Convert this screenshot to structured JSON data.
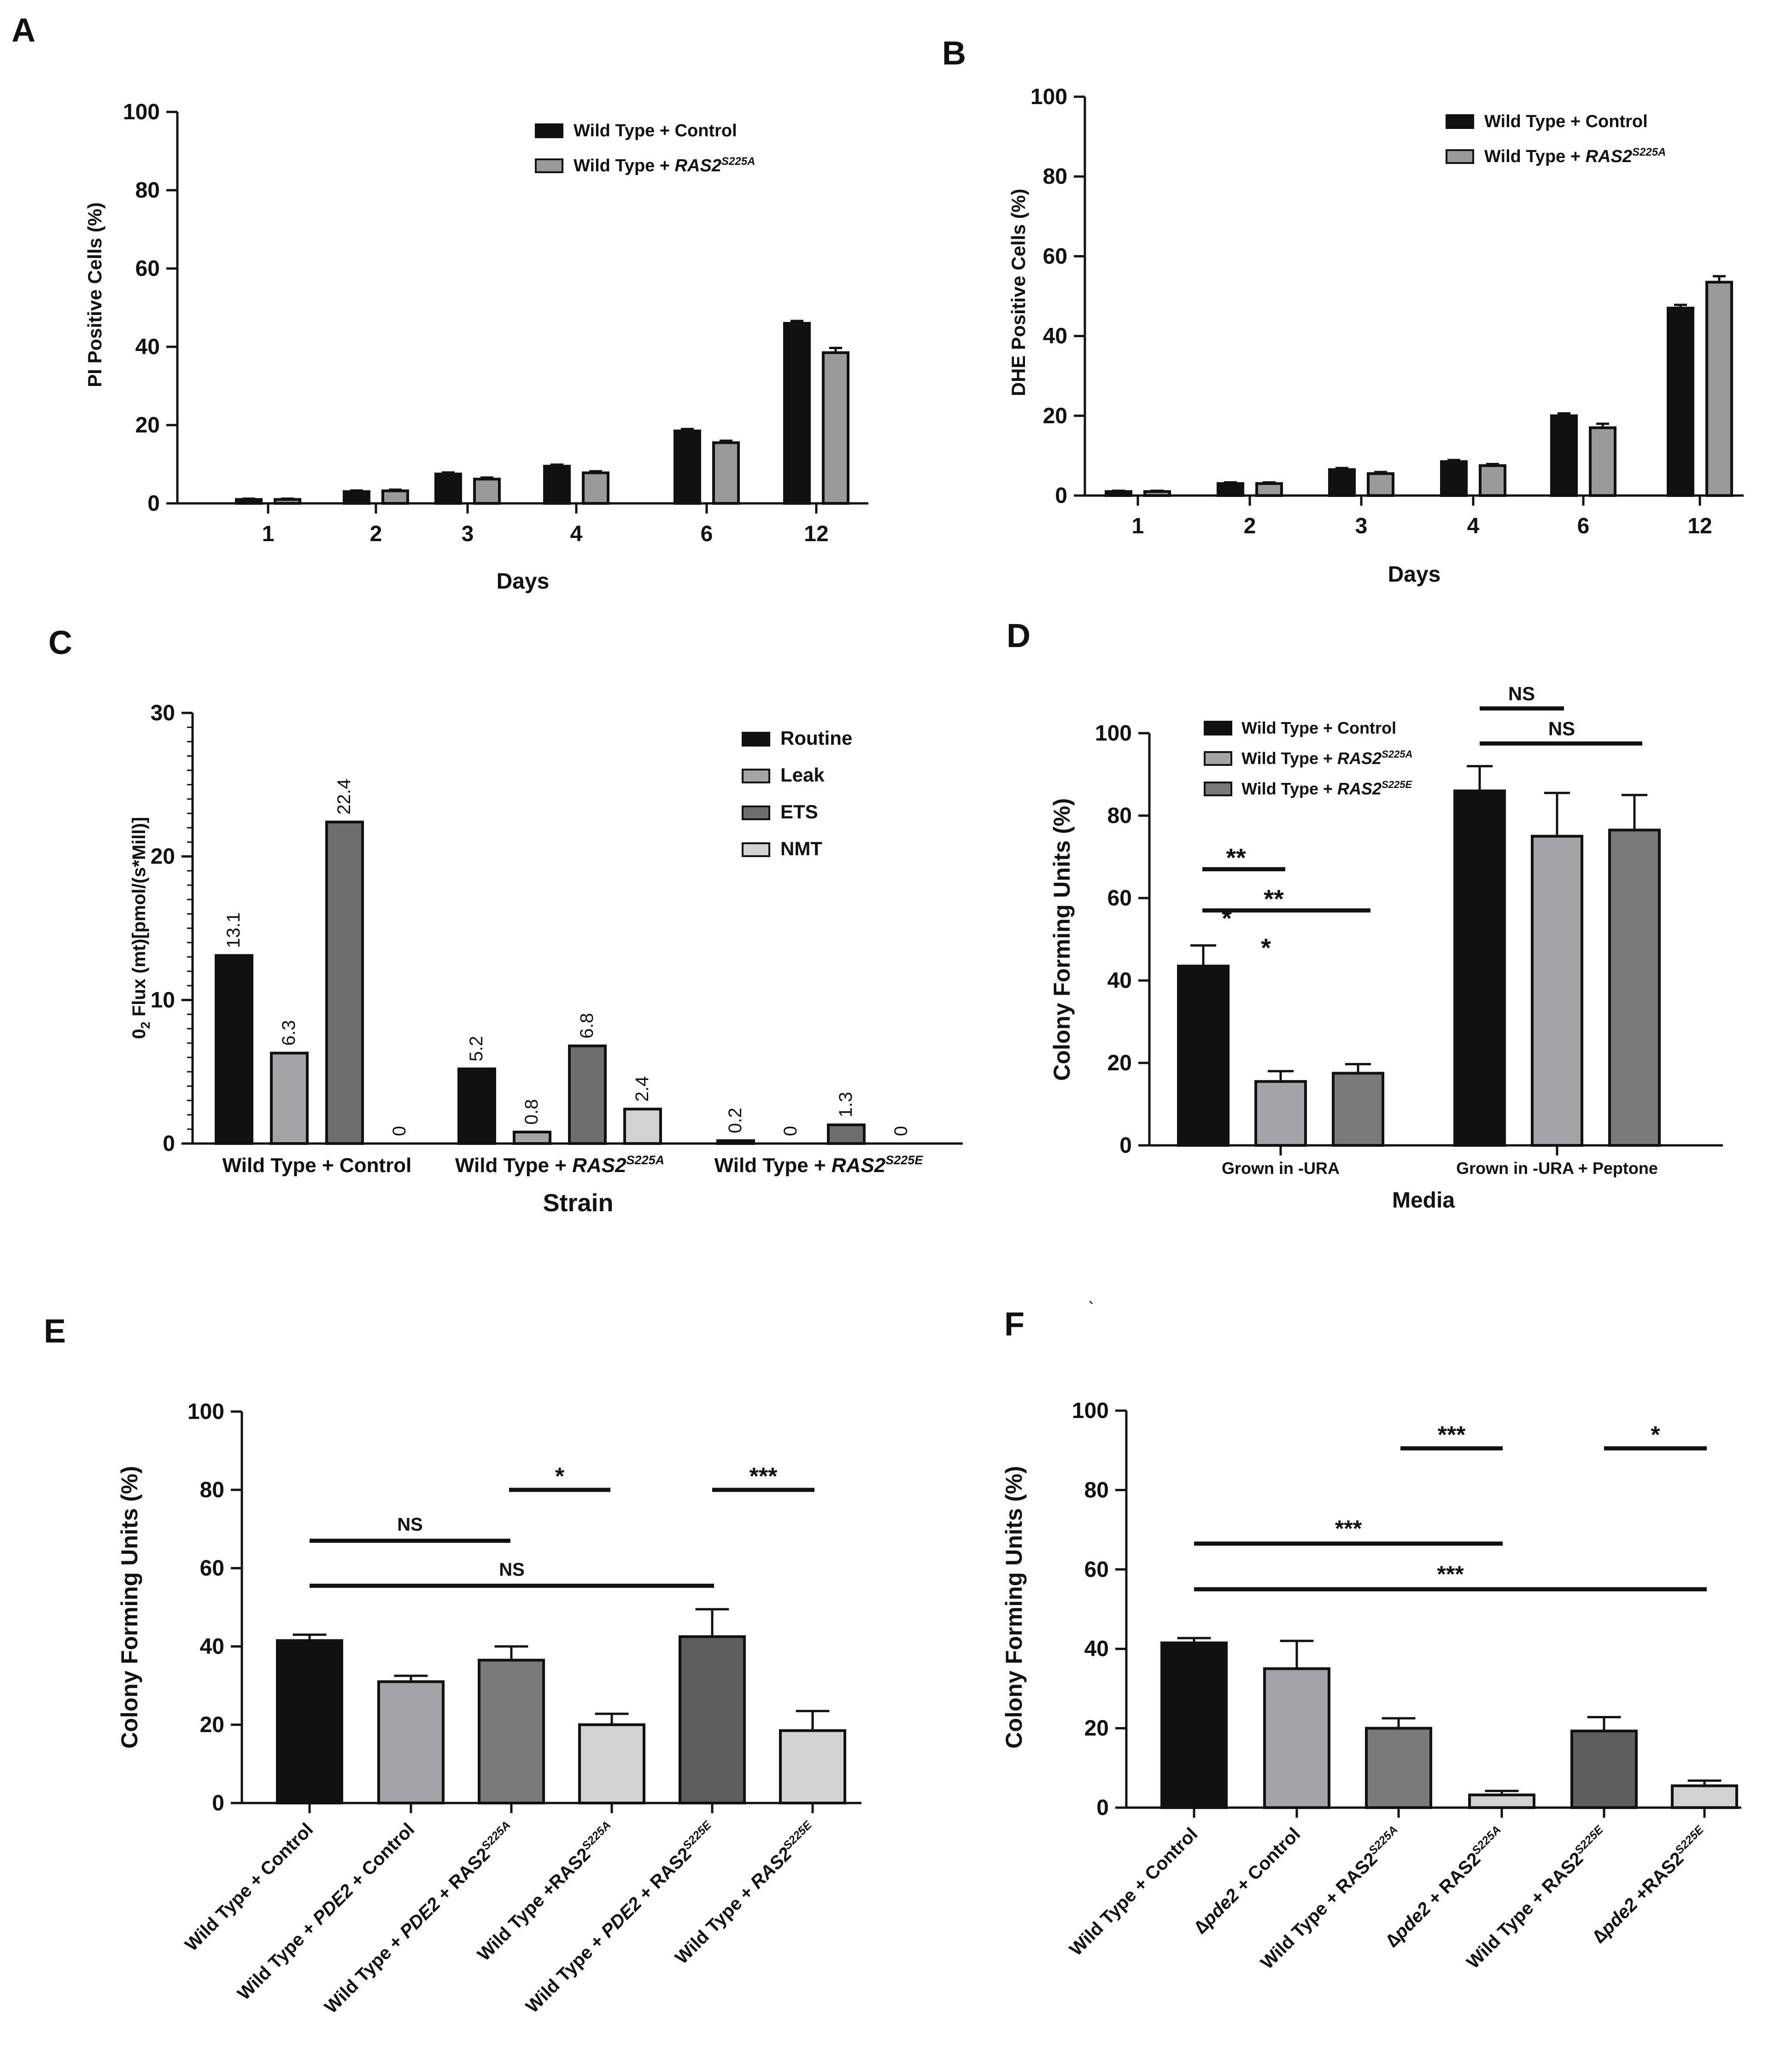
{
  "chart_data": [
    {
      "panel": "A",
      "type": "bar",
      "title": "",
      "xlabel": "Days",
      "ylabel": "PI Positive Cells (%)",
      "ylim": [
        0,
        100
      ],
      "yticks": [
        "0",
        "20",
        "40",
        "60",
        "80",
        "100"
      ],
      "categories": [
        "1",
        "2",
        "3",
        "4",
        "6",
        "12"
      ],
      "series": [
        {
          "name": "Wild Type + Control",
          "color": "#111111",
          "values": [
            1,
            3,
            7.5,
            9.5,
            18.5,
            46
          ],
          "errors": [
            0.2,
            0.3,
            0.4,
            0.4,
            0.5,
            0.6
          ]
        },
        {
          "name": "Wild Type + RAS2",
          "sup": "S225A",
          "color": "#9a9a9a",
          "values": [
            1,
            3.2,
            6.2,
            7.8,
            15.5,
            38.5
          ],
          "errors": [
            0.2,
            0.3,
            0.4,
            0.4,
            0.5,
            1.2
          ]
        }
      ],
      "legend": "top-right"
    },
    {
      "panel": "B",
      "type": "bar",
      "title": "",
      "xlabel": "Days",
      "ylabel": "DHE Positive Cells (%)",
      "ylim": [
        0,
        100
      ],
      "yticks": [
        "0",
        "20",
        "40",
        "60",
        "80",
        "100"
      ],
      "categories": [
        "1",
        "2",
        "3",
        "4",
        "6",
        "12"
      ],
      "series": [
        {
          "name": "Wild Type +  Control",
          "color": "#111111",
          "values": [
            1,
            3,
            6.5,
            8.5,
            20,
            47
          ],
          "errors": [
            0.2,
            0.3,
            0.4,
            0.4,
            0.6,
            0.8
          ]
        },
        {
          "name": "Wild Type + RAS2",
          "sup": "S225A",
          "color": "#9a9a9a",
          "values": [
            1,
            3,
            5.5,
            7.5,
            17,
            53.5
          ],
          "errors": [
            0.2,
            0.3,
            0.4,
            0.4,
            1.0,
            1.5
          ]
        }
      ],
      "legend": "top-right"
    },
    {
      "panel": "C",
      "type": "bar",
      "title": "",
      "xlabel": "Strain",
      "ylabel_pre": "0",
      "ylabel_sub": "2",
      "ylabel_post": " Flux (mt)[pmol/(s*Mill)]",
      "ylim": [
        0,
        30
      ],
      "yticks": [
        "0",
        "10",
        "20",
        "30"
      ],
      "categories": [
        {
          "pre": "Wild Type + Control",
          "sup": ""
        },
        {
          "pre": "Wild Type + ",
          "ital": "RAS2",
          "sup": "S225A"
        },
        {
          "pre": "Wild Type + ",
          "ital": "RAS2",
          "sup": "S225E"
        }
      ],
      "series": [
        {
          "name": "Routine",
          "color": "#111111",
          "values": [
            13.1,
            5.2,
            0.2
          ],
          "labels": [
            "13.1",
            "5.2",
            "0.2"
          ]
        },
        {
          "name": "Leak",
          "color": "#a3a3a8",
          "values": [
            6.3,
            0.8,
            0
          ],
          "labels": [
            "6.3",
            "0.8",
            "0"
          ]
        },
        {
          "name": "ETS",
          "color": "#6e6e6e",
          "values": [
            22.4,
            6.8,
            1.3
          ],
          "labels": [
            "22.4",
            "6.8",
            "1.3"
          ]
        },
        {
          "name": "NMT",
          "color": "#d2d2d2",
          "values": [
            0,
            2.4,
            0
          ],
          "labels": [
            "0",
            "2.4",
            "0"
          ]
        }
      ],
      "legend": "top-right"
    },
    {
      "panel": "D",
      "type": "bar",
      "title": "",
      "xlabel": "Media",
      "ylabel": "Colony Forming Units (%)",
      "ylim": [
        0,
        100
      ],
      "yticks": [
        "0",
        "20",
        "40",
        "60",
        "80",
        "100"
      ],
      "categories": [
        "Grown in -URA",
        "Grown in -URA + Peptone"
      ],
      "series": [
        {
          "name": "Wild Type + Control",
          "color": "#111111",
          "values": [
            43.5,
            86
          ],
          "errors": [
            5,
            6
          ]
        },
        {
          "name": "Wild Type + RAS2",
          "sup": "S225A",
          "color": "#a3a3a8",
          "values": [
            15.5,
            75
          ],
          "errors": [
            2.5,
            10.5
          ]
        },
        {
          "name": "Wild Type + RAS2",
          "sup": "S225E",
          "color": "#7a7a7a",
          "values": [
            17.5,
            76.5
          ],
          "errors": [
            2.2,
            8.5
          ]
        }
      ],
      "significance": [
        {
          "label": "**",
          "y": 67
        },
        {
          "label": "*",
          "y": 58
        },
        {
          "label": "**",
          "y": 59
        },
        {
          "label": "*",
          "y": 51
        },
        {
          "label": "NS",
          "y": 106
        },
        {
          "label": "NS",
          "y": 97.5
        }
      ],
      "legend": "top-left"
    },
    {
      "panel": "E",
      "type": "bar",
      "title": "",
      "xlabel": "",
      "ylabel": "Colony Forming Units (%)",
      "ylim": [
        0,
        100
      ],
      "yticks": [
        "0",
        "20",
        "40",
        "60",
        "80",
        "100"
      ],
      "categories": [
        {
          "pre": "Wild Type + Control",
          "ital": "",
          "post": "",
          "sup": ""
        },
        {
          "pre": "Wild Type + ",
          "ital": "PDE2",
          "post": " + Control",
          "sup": ""
        },
        {
          "pre": "Wild Type + ",
          "ital": "PDE2",
          "post": " + RAS2",
          "sup": "S225A"
        },
        {
          "pre": "Wild Type +RAS2",
          "ital": "",
          "post": "",
          "sup": "S225A"
        },
        {
          "pre": "Wild Type + ",
          "ital": "PDE2",
          "post": " + RAS2",
          "sup": "S225E"
        },
        {
          "pre": "Wild Type + ",
          "ital": "RAS2",
          "post": "",
          "sup": "S225E"
        }
      ],
      "values": [
        41.5,
        31,
        36.5,
        20,
        42.5,
        18.5
      ],
      "errors": [
        1.5,
        1.5,
        3.5,
        2.8,
        7,
        5
      ],
      "colors": [
        "#111111",
        "#a3a3a8",
        "#7a7a7a",
        "#d2d2d2",
        "#5e5e5e",
        "#d2d2d2"
      ],
      "significance": [
        {
          "label": "*",
          "y": 80
        },
        {
          "label": "***",
          "y": 80
        },
        {
          "label": "NS",
          "y": 67
        },
        {
          "label": "NS",
          "y": 55.5
        }
      ]
    },
    {
      "panel": "F",
      "type": "bar",
      "title": "",
      "xlabel": "",
      "ylabel": "Colony Forming Units (%)",
      "ylim": [
        0,
        100
      ],
      "yticks": [
        "0",
        "20",
        "40",
        "60",
        "80",
        "100"
      ],
      "categories": [
        {
          "pre": "Wild Type + Control",
          "ital": "",
          "post": "",
          "sup": ""
        },
        {
          "pre": "∆",
          "ital": "pde2",
          "post": " + Control",
          "sup": ""
        },
        {
          "pre": "Wild Type + RAS2",
          "ital": "",
          "post": "",
          "sup": "S225A"
        },
        {
          "pre": "∆",
          "ital": "pde2",
          "post": " + RAS2",
          "sup": "S225A"
        },
        {
          "pre": "Wild Type + RAS2",
          "ital": "",
          "post": "",
          "sup": "S225E"
        },
        {
          "pre": "∆",
          "ital": "pde2",
          "post": " +RAS2",
          "sup": "S225E"
        }
      ],
      "values": [
        41.5,
        35,
        20,
        3.2,
        19.3,
        5.5
      ],
      "errors": [
        1.2,
        7,
        2.5,
        1,
        3.5,
        1.3
      ],
      "colors": [
        "#111111",
        "#a3a3a8",
        "#7a7a7a",
        "#d2d2d2",
        "#5e5e5e",
        "#d2d2d2"
      ],
      "significance": [
        {
          "label": "***",
          "y": 90.5
        },
        {
          "label": "*",
          "y": 90.5
        },
        {
          "label": "***",
          "y": 66.5
        },
        {
          "label": "***",
          "y": 55
        }
      ]
    }
  ],
  "panel_labels": [
    "A",
    "B",
    "C",
    "D",
    "E",
    "F"
  ],
  "stray_mark": "`"
}
